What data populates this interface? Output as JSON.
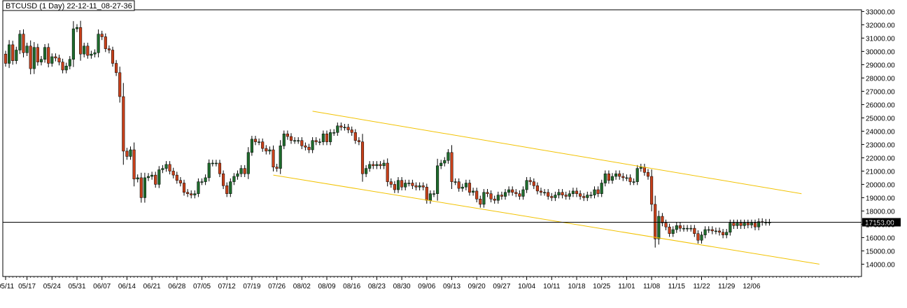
{
  "window": {
    "title": "BTCUSD (1 Day) 22-12-11_08-27-36"
  },
  "colors": {
    "background": "#ffffff",
    "axis": "#000000",
    "bull_candle": "#1e6b2c",
    "bear_candle": "#c8401a",
    "wick": "#000000",
    "channel": "#f2c200",
    "price_line": "#000000",
    "price_label_bg": "#000000",
    "price_label_text": "#ffffff"
  },
  "chart_data": {
    "type": "candlestick",
    "title": "BTCUSD (1 Day) 22-12-11_08-27-36",
    "ylim": [
      13000,
      33500
    ],
    "grid": false,
    "y_ticks": [
      14000,
      15000,
      16000,
      17000,
      18000,
      19000,
      20000,
      21000,
      22000,
      23000,
      24000,
      25000,
      26000,
      27000,
      28000,
      29000,
      30000,
      31000,
      32000,
      33000
    ],
    "y_tick_labels": [
      "14000.00",
      "15000.00",
      "16000.00",
      "17000.00",
      "18000.00",
      "19000.00",
      "20000.00",
      "21000.00",
      "22000.00",
      "23000.00",
      "24000.00",
      "25000.00",
      "26000.00",
      "27000.00",
      "28000.00",
      "29000.00",
      "30000.00",
      "31000.00",
      "32000.00",
      "33000.00"
    ],
    "top_partial_label": "33000.00",
    "x_start_date": "2022-05-11",
    "x_labels": [
      {
        "date": "2022-05-11",
        "label": "05/11"
      },
      {
        "date": "2022-05-17",
        "label": "05/17"
      },
      {
        "date": "2022-05-24",
        "label": "05/24"
      },
      {
        "date": "2022-05-31",
        "label": "05/31"
      },
      {
        "date": "2022-06-07",
        "label": "06/07"
      },
      {
        "date": "2022-06-14",
        "label": "06/14"
      },
      {
        "date": "2022-06-21",
        "label": "06/21"
      },
      {
        "date": "2022-06-28",
        "label": "06/28"
      },
      {
        "date": "2022-07-05",
        "label": "07/05"
      },
      {
        "date": "2022-07-12",
        "label": "07/12"
      },
      {
        "date": "2022-07-19",
        "label": "07/19"
      },
      {
        "date": "2022-07-26",
        "label": "07/26"
      },
      {
        "date": "2022-08-02",
        "label": "08/02"
      },
      {
        "date": "2022-08-09",
        "label": "08/09"
      },
      {
        "date": "2022-08-16",
        "label": "08/16"
      },
      {
        "date": "2022-08-23",
        "label": "08/23"
      },
      {
        "date": "2022-08-30",
        "label": "08/30"
      },
      {
        "date": "2022-09-06",
        "label": "09/06"
      },
      {
        "date": "2022-09-13",
        "label": "09/13"
      },
      {
        "date": "2022-09-20",
        "label": "09/20"
      },
      {
        "date": "2022-09-27",
        "label": "09/27"
      },
      {
        "date": "2022-10-04",
        "label": "10/04"
      },
      {
        "date": "2022-10-11",
        "label": "10/11"
      },
      {
        "date": "2022-10-18",
        "label": "10/18"
      },
      {
        "date": "2022-10-25",
        "label": "10/25"
      },
      {
        "date": "2022-11-01",
        "label": "11/01"
      },
      {
        "date": "2022-11-08",
        "label": "11/08"
      },
      {
        "date": "2022-11-15",
        "label": "11/15"
      },
      {
        "date": "2022-11-22",
        "label": "11/22"
      },
      {
        "date": "2022-11-29",
        "label": "11/29"
      },
      {
        "date": "2022-12-06",
        "label": "12/06"
      }
    ],
    "current_price": 17153,
    "current_price_label": "17153.00",
    "channel": {
      "upper": {
        "start": {
          "date": "2022-08-05",
          "price": 25500
        },
        "end": {
          "date": "2022-12-20",
          "price": 19300
        }
      },
      "lower": {
        "start": {
          "date": "2022-07-25",
          "price": 20700
        },
        "end": {
          "date": "2022-12-25",
          "price": 14000
        }
      }
    },
    "closes": [
      {
        "date": "2022-05-11",
        "close": 29100
      },
      {
        "date": "2022-05-12",
        "close": 30500
      },
      {
        "date": "2022-05-13",
        "close": 29300
      },
      {
        "date": "2022-05-14",
        "close": 30100
      },
      {
        "date": "2022-05-15",
        "close": 31300
      },
      {
        "date": "2022-05-16",
        "close": 29900
      },
      {
        "date": "2022-05-17",
        "close": 30400
      },
      {
        "date": "2022-05-18",
        "close": 28700
      },
      {
        "date": "2022-05-19",
        "close": 30300
      },
      {
        "date": "2022-05-20",
        "close": 29200
      },
      {
        "date": "2022-05-21",
        "close": 29400
      },
      {
        "date": "2022-05-22",
        "close": 30300
      },
      {
        "date": "2022-05-23",
        "close": 29100
      },
      {
        "date": "2022-05-24",
        "close": 29600
      },
      {
        "date": "2022-05-25",
        "close": 29500
      },
      {
        "date": "2022-05-26",
        "close": 29200
      },
      {
        "date": "2022-05-27",
        "close": 28600
      },
      {
        "date": "2022-05-28",
        "close": 28900
      },
      {
        "date": "2022-05-29",
        "close": 29400
      },
      {
        "date": "2022-05-30",
        "close": 31700
      },
      {
        "date": "2022-05-31",
        "close": 31800
      },
      {
        "date": "2022-06-01",
        "close": 29800
      },
      {
        "date": "2022-06-02",
        "close": 30400
      },
      {
        "date": "2022-06-03",
        "close": 29700
      },
      {
        "date": "2022-06-04",
        "close": 29800
      },
      {
        "date": "2022-06-05",
        "close": 29900
      },
      {
        "date": "2022-06-06",
        "close": 31300
      },
      {
        "date": "2022-06-07",
        "close": 31100
      },
      {
        "date": "2022-06-08",
        "close": 30200
      },
      {
        "date": "2022-06-09",
        "close": 30100
      },
      {
        "date": "2022-06-10",
        "close": 29100
      },
      {
        "date": "2022-06-11",
        "close": 28400
      },
      {
        "date": "2022-06-12",
        "close": 26600
      },
      {
        "date": "2022-06-13",
        "close": 22500
      },
      {
        "date": "2022-06-14",
        "close": 22100
      },
      {
        "date": "2022-06-15",
        "close": 22600
      },
      {
        "date": "2022-06-16",
        "close": 20400
      },
      {
        "date": "2022-06-17",
        "close": 20500
      },
      {
        "date": "2022-06-18",
        "close": 19000
      },
      {
        "date": "2022-06-19",
        "close": 20500
      },
      {
        "date": "2022-06-20",
        "close": 20600
      },
      {
        "date": "2022-06-21",
        "close": 20700
      },
      {
        "date": "2022-06-22",
        "close": 20000
      },
      {
        "date": "2022-06-23",
        "close": 21100
      },
      {
        "date": "2022-06-24",
        "close": 21200
      },
      {
        "date": "2022-06-25",
        "close": 21500
      },
      {
        "date": "2022-06-26",
        "close": 21000
      },
      {
        "date": "2022-06-27",
        "close": 20700
      },
      {
        "date": "2022-06-28",
        "close": 20300
      },
      {
        "date": "2022-06-29",
        "close": 20100
      },
      {
        "date": "2022-06-30",
        "close": 19400
      },
      {
        "date": "2022-07-01",
        "close": 19300
      },
      {
        "date": "2022-07-02",
        "close": 19200
      },
      {
        "date": "2022-07-03",
        "close": 19300
      },
      {
        "date": "2022-07-04",
        "close": 20200
      },
      {
        "date": "2022-07-05",
        "close": 20200
      },
      {
        "date": "2022-07-06",
        "close": 20500
      },
      {
        "date": "2022-07-07",
        "close": 21600
      },
      {
        "date": "2022-07-08",
        "close": 21600
      },
      {
        "date": "2022-07-09",
        "close": 21600
      },
      {
        "date": "2022-07-10",
        "close": 20800
      },
      {
        "date": "2022-07-11",
        "close": 19900
      },
      {
        "date": "2022-07-12",
        "close": 19300
      },
      {
        "date": "2022-07-13",
        "close": 20200
      },
      {
        "date": "2022-07-14",
        "close": 20600
      },
      {
        "date": "2022-07-15",
        "close": 20800
      },
      {
        "date": "2022-07-16",
        "close": 21200
      },
      {
        "date": "2022-07-17",
        "close": 20800
      },
      {
        "date": "2022-07-18",
        "close": 22400
      },
      {
        "date": "2022-07-19",
        "close": 23400
      },
      {
        "date": "2022-07-20",
        "close": 23200
      },
      {
        "date": "2022-07-21",
        "close": 23200
      },
      {
        "date": "2022-07-22",
        "close": 22700
      },
      {
        "date": "2022-07-23",
        "close": 22500
      },
      {
        "date": "2022-07-24",
        "close": 22600
      },
      {
        "date": "2022-07-25",
        "close": 21300
      },
      {
        "date": "2022-07-26",
        "close": 21200
      },
      {
        "date": "2022-07-27",
        "close": 22900
      },
      {
        "date": "2022-07-28",
        "close": 23800
      },
      {
        "date": "2022-07-29",
        "close": 23600
      },
      {
        "date": "2022-07-30",
        "close": 23300
      },
      {
        "date": "2022-07-31",
        "close": 23300
      },
      {
        "date": "2022-08-01",
        "close": 23300
      },
      {
        "date": "2022-08-02",
        "close": 22900
      },
      {
        "date": "2022-08-03",
        "close": 22800
      },
      {
        "date": "2022-08-04",
        "close": 22600
      },
      {
        "date": "2022-08-05",
        "close": 23300
      },
      {
        "date": "2022-08-06",
        "close": 23200
      },
      {
        "date": "2022-08-07",
        "close": 23200
      },
      {
        "date": "2022-08-08",
        "close": 23800
      },
      {
        "date": "2022-08-09",
        "close": 23200
      },
      {
        "date": "2022-08-10",
        "close": 23900
      },
      {
        "date": "2022-08-11",
        "close": 23900
      },
      {
        "date": "2022-08-12",
        "close": 24400
      },
      {
        "date": "2022-08-13",
        "close": 24300
      },
      {
        "date": "2022-08-14",
        "close": 24300
      },
      {
        "date": "2022-08-15",
        "close": 24100
      },
      {
        "date": "2022-08-16",
        "close": 23900
      },
      {
        "date": "2022-08-17",
        "close": 23300
      },
      {
        "date": "2022-08-18",
        "close": 23200
      },
      {
        "date": "2022-08-19",
        "close": 20800
      },
      {
        "date": "2022-08-20",
        "close": 21200
      },
      {
        "date": "2022-08-21",
        "close": 21500
      },
      {
        "date": "2022-08-22",
        "close": 21400
      },
      {
        "date": "2022-08-23",
        "close": 21500
      },
      {
        "date": "2022-08-24",
        "close": 21400
      },
      {
        "date": "2022-08-25",
        "close": 21600
      },
      {
        "date": "2022-08-26",
        "close": 20200
      },
      {
        "date": "2022-08-27",
        "close": 20000
      },
      {
        "date": "2022-08-28",
        "close": 19600
      },
      {
        "date": "2022-08-29",
        "close": 20300
      },
      {
        "date": "2022-08-30",
        "close": 19800
      },
      {
        "date": "2022-08-31",
        "close": 20100
      },
      {
        "date": "2022-09-01",
        "close": 20100
      },
      {
        "date": "2022-09-02",
        "close": 19900
      },
      {
        "date": "2022-09-03",
        "close": 19800
      },
      {
        "date": "2022-09-04",
        "close": 19900
      },
      {
        "date": "2022-09-05",
        "close": 19800
      },
      {
        "date": "2022-09-06",
        "close": 18800
      },
      {
        "date": "2022-09-07",
        "close": 19300
      },
      {
        "date": "2022-09-08",
        "close": 19300
      },
      {
        "date": "2022-09-09",
        "close": 21400
      },
      {
        "date": "2022-09-10",
        "close": 21600
      },
      {
        "date": "2022-09-11",
        "close": 21800
      },
      {
        "date": "2022-09-12",
        "close": 22400
      },
      {
        "date": "2022-09-13",
        "close": 20200
      },
      {
        "date": "2022-09-14",
        "close": 20200
      },
      {
        "date": "2022-09-15",
        "close": 19700
      },
      {
        "date": "2022-09-16",
        "close": 19800
      },
      {
        "date": "2022-09-17",
        "close": 20100
      },
      {
        "date": "2022-09-18",
        "close": 19400
      },
      {
        "date": "2022-09-19",
        "close": 19500
      },
      {
        "date": "2022-09-20",
        "close": 18900
      },
      {
        "date": "2022-09-21",
        "close": 18500
      },
      {
        "date": "2022-09-22",
        "close": 19400
      },
      {
        "date": "2022-09-23",
        "close": 19300
      },
      {
        "date": "2022-09-24",
        "close": 18900
      },
      {
        "date": "2022-09-25",
        "close": 18800
      },
      {
        "date": "2022-09-26",
        "close": 19200
      },
      {
        "date": "2022-09-27",
        "close": 19100
      },
      {
        "date": "2022-09-28",
        "close": 19400
      },
      {
        "date": "2022-09-29",
        "close": 19600
      },
      {
        "date": "2022-09-30",
        "close": 19400
      },
      {
        "date": "2022-10-01",
        "close": 19300
      },
      {
        "date": "2022-10-02",
        "close": 19100
      },
      {
        "date": "2022-10-03",
        "close": 19600
      },
      {
        "date": "2022-10-04",
        "close": 20300
      },
      {
        "date": "2022-10-05",
        "close": 20200
      },
      {
        "date": "2022-10-06",
        "close": 19900
      },
      {
        "date": "2022-10-07",
        "close": 19500
      },
      {
        "date": "2022-10-08",
        "close": 19400
      },
      {
        "date": "2022-10-09",
        "close": 19400
      },
      {
        "date": "2022-10-10",
        "close": 19100
      },
      {
        "date": "2022-10-11",
        "close": 19000
      },
      {
        "date": "2022-10-12",
        "close": 19200
      },
      {
        "date": "2022-10-13",
        "close": 19400
      },
      {
        "date": "2022-10-14",
        "close": 19200
      },
      {
        "date": "2022-10-15",
        "close": 19100
      },
      {
        "date": "2022-10-16",
        "close": 19300
      },
      {
        "date": "2022-10-17",
        "close": 19500
      },
      {
        "date": "2022-10-18",
        "close": 19300
      },
      {
        "date": "2022-10-19",
        "close": 19100
      },
      {
        "date": "2022-10-20",
        "close": 19000
      },
      {
        "date": "2022-10-21",
        "close": 19200
      },
      {
        "date": "2022-10-22",
        "close": 19200
      },
      {
        "date": "2022-10-23",
        "close": 19600
      },
      {
        "date": "2022-10-24",
        "close": 19300
      },
      {
        "date": "2022-10-25",
        "close": 20100
      },
      {
        "date": "2022-10-26",
        "close": 20800
      },
      {
        "date": "2022-10-27",
        "close": 20300
      },
      {
        "date": "2022-10-28",
        "close": 20600
      },
      {
        "date": "2022-10-29",
        "close": 20800
      },
      {
        "date": "2022-10-30",
        "close": 20600
      },
      {
        "date": "2022-10-31",
        "close": 20500
      },
      {
        "date": "2022-11-01",
        "close": 20500
      },
      {
        "date": "2022-11-02",
        "close": 20200
      },
      {
        "date": "2022-11-03",
        "close": 20200
      },
      {
        "date": "2022-11-04",
        "close": 21200
      },
      {
        "date": "2022-11-05",
        "close": 21300
      },
      {
        "date": "2022-11-06",
        "close": 20900
      },
      {
        "date": "2022-11-07",
        "close": 20600
      },
      {
        "date": "2022-11-08",
        "close": 18500
      },
      {
        "date": "2022-11-09",
        "close": 15900
      },
      {
        "date": "2022-11-10",
        "close": 17600
      },
      {
        "date": "2022-11-11",
        "close": 17100
      },
      {
        "date": "2022-11-12",
        "close": 16800
      },
      {
        "date": "2022-11-13",
        "close": 16300
      },
      {
        "date": "2022-11-14",
        "close": 16600
      },
      {
        "date": "2022-11-15",
        "close": 16900
      },
      {
        "date": "2022-11-16",
        "close": 16700
      },
      {
        "date": "2022-11-17",
        "close": 16700
      },
      {
        "date": "2022-11-18",
        "close": 16700
      },
      {
        "date": "2022-11-19",
        "close": 16700
      },
      {
        "date": "2022-11-20",
        "close": 16300
      },
      {
        "date": "2022-11-21",
        "close": 15800
      },
      {
        "date": "2022-11-22",
        "close": 16200
      },
      {
        "date": "2022-11-23",
        "close": 16600
      },
      {
        "date": "2022-11-24",
        "close": 16600
      },
      {
        "date": "2022-11-25",
        "close": 16500
      },
      {
        "date": "2022-11-26",
        "close": 16500
      },
      {
        "date": "2022-11-27",
        "close": 16400
      },
      {
        "date": "2022-11-28",
        "close": 16200
      },
      {
        "date": "2022-11-29",
        "close": 16400
      },
      {
        "date": "2022-11-30",
        "close": 17100
      },
      {
        "date": "2022-12-01",
        "close": 16900
      },
      {
        "date": "2022-12-02",
        "close": 17100
      },
      {
        "date": "2022-12-03",
        "close": 16900
      },
      {
        "date": "2022-12-04",
        "close": 17100
      },
      {
        "date": "2022-12-05",
        "close": 16950
      },
      {
        "date": "2022-12-06",
        "close": 17100
      },
      {
        "date": "2022-12-07",
        "close": 16800
      },
      {
        "date": "2022-12-08",
        "close": 17200
      },
      {
        "date": "2022-12-09",
        "close": 17150
      },
      {
        "date": "2022-12-10",
        "close": 17150
      },
      {
        "date": "2022-12-11",
        "close": 17153
      }
    ]
  }
}
